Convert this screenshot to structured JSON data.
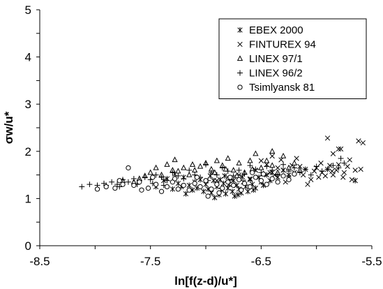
{
  "chart_data": {
    "type": "scatter",
    "xlabel": "ln[f(z-d)/u*]",
    "ylabel": "σw/u*",
    "xlim": [
      -8.5,
      -5.5
    ],
    "ylim": [
      0,
      5
    ],
    "x_ticks": [
      "-8.5",
      "-7.5",
      "-6.5",
      "-5.5"
    ],
    "y_ticks": [
      "0",
      "1",
      "2",
      "3",
      "4",
      "5"
    ],
    "grid": false,
    "legend_position": "top-right",
    "series": [
      {
        "name": "EBEX 2000",
        "marker": "asterisk",
        "points": [
          [
            -7.45,
            1.25
          ],
          [
            -7.38,
            1.38
          ],
          [
            -7.3,
            1.2
          ],
          [
            -7.25,
            1.32
          ],
          [
            -7.2,
            1.45
          ],
          [
            -7.15,
            1.28
          ],
          [
            -7.12,
            1.18
          ],
          [
            -7.1,
            1.35
          ],
          [
            -7.08,
            1.22
          ],
          [
            -7.05,
            1.4
          ],
          [
            -7.02,
            1.15
          ],
          [
            -7.0,
            1.3
          ],
          [
            -6.98,
            1.2
          ],
          [
            -6.95,
            1.12
          ],
          [
            -6.93,
            1.38
          ],
          [
            -6.9,
            1.25
          ],
          [
            -6.88,
            1.08
          ],
          [
            -6.86,
            1.18
          ],
          [
            -6.84,
            1.32
          ],
          [
            -6.82,
            1.1
          ],
          [
            -6.8,
            1.22
          ],
          [
            -6.78,
            1.42
          ],
          [
            -6.76,
            1.15
          ],
          [
            -6.74,
            1.05
          ],
          [
            -6.72,
            1.28
          ],
          [
            -6.7,
            1.2
          ],
          [
            -6.68,
            1.12
          ],
          [
            -6.66,
            1.35
          ],
          [
            -6.64,
            1.25
          ],
          [
            -6.62,
            1.15
          ],
          [
            -6.6,
            1.4
          ],
          [
            -6.58,
            1.3
          ],
          [
            -6.55,
            1.22
          ],
          [
            -6.52,
            1.45
          ],
          [
            -6.5,
            1.35
          ],
          [
            -6.48,
            1.28
          ],
          [
            -6.45,
            1.5
          ],
          [
            -6.42,
            1.38
          ],
          [
            -7.28,
            1.52
          ],
          [
            -7.18,
            1.1
          ],
          [
            -6.96,
            1.48
          ],
          [
            -6.87,
            1.4
          ],
          [
            -6.79,
            1.3
          ],
          [
            -6.71,
            1.08
          ],
          [
            -6.67,
            1.46
          ],
          [
            -6.57,
            1.18
          ],
          [
            -6.4,
            1.55
          ],
          [
            -6.35,
            1.45
          ],
          [
            -6.3,
            1.6
          ],
          [
            -6.25,
            1.5
          ],
          [
            -5.65,
            1.38
          ],
          [
            -7.35,
            1.42
          ],
          [
            -7.22,
            1.25
          ],
          [
            -6.92,
            1.02
          ],
          [
            -6.83,
            1.48
          ],
          [
            -6.75,
            1.38
          ]
        ]
      },
      {
        "name": "FINTUREX 94",
        "marker": "x",
        "points": [
          [
            -6.9,
            1.38
          ],
          [
            -6.8,
            1.45
          ],
          [
            -6.7,
            1.5
          ],
          [
            -6.6,
            1.42
          ],
          [
            -6.55,
            1.6
          ],
          [
            -6.5,
            1.8
          ],
          [
            -6.45,
            1.72
          ],
          [
            -6.42,
            1.55
          ],
          [
            -6.4,
            1.9
          ],
          [
            -6.35,
            1.65
          ],
          [
            -6.32,
            1.82
          ],
          [
            -6.3,
            1.6
          ],
          [
            -6.25,
            1.45
          ],
          [
            -6.22,
            1.7
          ],
          [
            -6.2,
            1.55
          ],
          [
            -6.18,
            1.85
          ],
          [
            -6.15,
            1.68
          ],
          [
            -6.12,
            1.5
          ],
          [
            -6.1,
            1.62
          ],
          [
            -6.05,
            1.4
          ],
          [
            -6.02,
            1.58
          ],
          [
            -6.0,
            1.65
          ],
          [
            -5.98,
            1.45
          ],
          [
            -5.95,
            1.55
          ],
          [
            -5.92,
            1.48
          ],
          [
            -5.9,
            1.62
          ],
          [
            -5.88,
            1.7
          ],
          [
            -5.85,
            1.5
          ],
          [
            -5.82,
            1.6
          ],
          [
            -5.8,
            1.72
          ],
          [
            -5.78,
            2.05
          ],
          [
            -5.75,
            1.55
          ],
          [
            -5.72,
            1.68
          ],
          [
            -5.7,
            1.82
          ],
          [
            -5.68,
            1.4
          ],
          [
            -5.65,
            1.6
          ],
          [
            -5.62,
            2.22
          ],
          [
            -5.6,
            1.62
          ],
          [
            -5.58,
            2.18
          ],
          [
            -5.9,
            2.28
          ],
          [
            -5.85,
            1.95
          ],
          [
            -5.8,
            2.05
          ],
          [
            -6.28,
            1.35
          ],
          [
            -6.08,
            1.3
          ],
          [
            -5.96,
            1.75
          ],
          [
            -5.86,
            1.58
          ],
          [
            -5.76,
            1.45
          ],
          [
            -6.38,
            1.5
          ]
        ]
      },
      {
        "name": "LINEX 97/1",
        "marker": "triangle",
        "points": [
          [
            -7.75,
            1.38
          ],
          [
            -7.6,
            1.42
          ],
          [
            -7.5,
            1.55
          ],
          [
            -7.45,
            1.65
          ],
          [
            -7.4,
            1.5
          ],
          [
            -7.35,
            1.72
          ],
          [
            -7.3,
            1.6
          ],
          [
            -7.28,
            1.82
          ],
          [
            -7.2,
            1.65
          ],
          [
            -7.15,
            1.5
          ],
          [
            -7.1,
            1.6
          ],
          [
            -7.05,
            1.68
          ],
          [
            -7.0,
            1.75
          ],
          [
            -6.95,
            1.62
          ],
          [
            -6.9,
            1.8
          ],
          [
            -6.85,
            1.7
          ],
          [
            -6.8,
            1.85
          ],
          [
            -6.75,
            1.6
          ],
          [
            -6.7,
            1.75
          ],
          [
            -6.65,
            1.55
          ],
          [
            -6.6,
            1.8
          ],
          [
            -6.55,
            1.95
          ],
          [
            -6.5,
            1.65
          ],
          [
            -6.45,
            1.8
          ],
          [
            -6.4,
            1.7
          ],
          [
            -6.35,
            1.55
          ],
          [
            -6.3,
            1.9
          ],
          [
            -6.25,
            1.65
          ],
          [
            -6.2,
            1.75
          ],
          [
            -6.15,
            1.6
          ],
          [
            -6.4,
            2.0
          ],
          [
            -7.25,
            1.58
          ],
          [
            -7.12,
            1.72
          ],
          [
            -6.92,
            1.55
          ],
          [
            -6.72,
            1.48
          ],
          [
            -6.58,
            1.62
          ],
          [
            -6.48,
            1.52
          ],
          [
            -7.55,
            1.48
          ],
          [
            -7.65,
            1.35
          ],
          [
            -6.82,
            1.62
          ]
        ]
      },
      {
        "name": "LINEX 96/2",
        "marker": "plus",
        "points": [
          [
            -8.12,
            1.25
          ],
          [
            -8.05,
            1.3
          ],
          [
            -7.98,
            1.28
          ],
          [
            -7.92,
            1.32
          ],
          [
            -7.85,
            1.35
          ],
          [
            -7.8,
            1.3
          ],
          [
            -7.75,
            1.4
          ],
          [
            -7.7,
            1.35
          ],
          [
            -7.65,
            1.42
          ],
          [
            -7.6,
            1.38
          ],
          [
            -7.55,
            1.45
          ],
          [
            -7.5,
            1.4
          ],
          [
            -7.45,
            1.5
          ],
          [
            -7.4,
            1.45
          ],
          [
            -7.35,
            1.38
          ],
          [
            -7.3,
            1.55
          ],
          [
            -7.25,
            1.48
          ],
          [
            -7.2,
            1.42
          ],
          [
            -7.15,
            1.6
          ],
          [
            -7.1,
            1.5
          ],
          [
            -7.05,
            1.45
          ],
          [
            -7.0,
            1.72
          ],
          [
            -6.95,
            1.55
          ],
          [
            -6.9,
            1.5
          ],
          [
            -6.85,
            1.65
          ],
          [
            -6.8,
            1.58
          ],
          [
            -6.75,
            1.48
          ],
          [
            -6.7,
            1.6
          ],
          [
            -6.65,
            1.52
          ],
          [
            -6.6,
            1.7
          ],
          [
            -6.55,
            1.62
          ],
          [
            -6.5,
            1.55
          ],
          [
            -6.45,
            1.68
          ],
          [
            -6.4,
            1.6
          ],
          [
            -6.35,
            1.5
          ],
          [
            -6.3,
            1.72
          ],
          [
            -6.25,
            1.58
          ],
          [
            -6.2,
            1.65
          ],
          [
            -6.15,
            1.55
          ],
          [
            -6.1,
            1.62
          ],
          [
            -6.05,
            1.5
          ],
          [
            -6.0,
            1.68
          ],
          [
            -5.95,
            1.58
          ],
          [
            -5.9,
            1.62
          ],
          [
            -5.85,
            1.7
          ],
          [
            -5.8,
            1.65
          ],
          [
            -5.75,
            1.75
          ],
          [
            -7.9,
            1.28
          ],
          [
            -7.78,
            1.25
          ],
          [
            -7.62,
            1.3
          ],
          [
            -7.48,
            1.32
          ],
          [
            -7.38,
            1.28
          ],
          [
            -5.78,
            1.85
          ],
          [
            -6.98,
            1.38
          ],
          [
            -6.78,
            1.4
          ]
        ]
      },
      {
        "name": "Tsimlyansk 81",
        "marker": "circle",
        "points": [
          [
            -7.98,
            1.2
          ],
          [
            -7.9,
            1.25
          ],
          [
            -7.82,
            1.22
          ],
          [
            -7.75,
            1.3
          ],
          [
            -7.7,
            1.65
          ],
          [
            -7.65,
            1.28
          ],
          [
            -7.58,
            1.18
          ],
          [
            -7.52,
            1.22
          ],
          [
            -7.45,
            1.3
          ],
          [
            -7.4,
            1.15
          ],
          [
            -7.35,
            1.25
          ],
          [
            -7.3,
            1.35
          ],
          [
            -7.25,
            1.2
          ],
          [
            -7.2,
            1.28
          ],
          [
            -7.15,
            1.18
          ],
          [
            -7.1,
            1.32
          ],
          [
            -7.05,
            1.25
          ],
          [
            -7.0,
            1.38
          ],
          [
            -6.95,
            1.2
          ],
          [
            -6.9,
            1.3
          ],
          [
            -6.85,
            1.22
          ],
          [
            -6.8,
            1.35
          ],
          [
            -6.75,
            1.28
          ],
          [
            -6.7,
            1.4
          ],
          [
            -6.65,
            1.32
          ],
          [
            -6.6,
            1.25
          ],
          [
            -6.55,
            1.45
          ],
          [
            -6.5,
            1.38
          ],
          [
            -6.45,
            1.3
          ],
          [
            -6.4,
            1.42
          ],
          [
            -6.35,
            1.35
          ],
          [
            -6.3,
            1.48
          ],
          [
            -6.25,
            1.4
          ],
          [
            -6.2,
            1.52
          ],
          [
            -7.48,
            1.45
          ],
          [
            -7.28,
            1.42
          ],
          [
            -7.08,
            1.45
          ],
          [
            -6.88,
            1.12
          ],
          [
            -6.68,
            1.18
          ],
          [
            -6.48,
            1.52
          ],
          [
            -7.6,
            1.35
          ],
          [
            -7.78,
            1.38
          ],
          [
            -6.98,
            1.05
          ],
          [
            -6.78,
            1.45
          ],
          [
            -6.58,
            1.55
          ]
        ]
      }
    ]
  }
}
